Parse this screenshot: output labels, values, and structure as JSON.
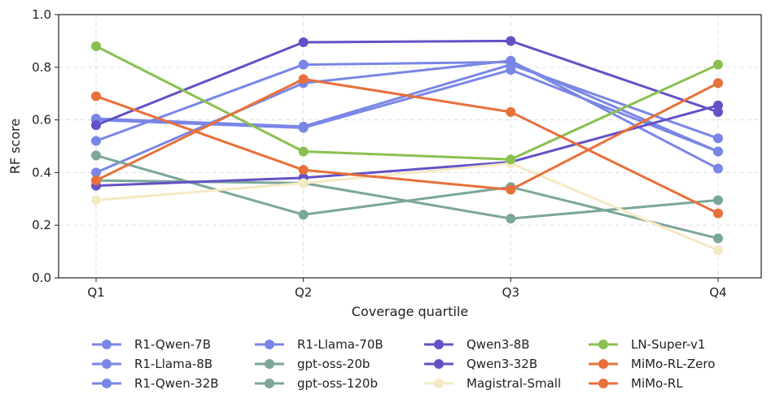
{
  "chart_data": {
    "type": "line",
    "title": "",
    "xlabel": "Coverage quartile",
    "ylabel": "RF score",
    "categories": [
      "Q1",
      "Q2",
      "Q3",
      "Q4"
    ],
    "ylim": [
      0.0,
      1.0
    ],
    "yticks": [
      "0.0",
      "0.2",
      "0.4",
      "0.6",
      "0.8",
      "1.0"
    ],
    "grid": true,
    "legend_position": "bottom",
    "series": [
      {
        "name": "R1-Qwen-7B",
        "color": "#7a86e6",
        "values": [
          0.6,
          0.57,
          0.79,
          0.48
        ]
      },
      {
        "name": "R1-Llama-8B",
        "color": "#7a86e6",
        "values": [
          0.52,
          0.81,
          0.82,
          0.48
        ]
      },
      {
        "name": "R1-Qwen-32B",
        "color": "#7a86e6",
        "values": [
          0.4,
          0.74,
          0.825,
          0.415
        ]
      },
      {
        "name": "R1-Llama-70B",
        "color": "#7a86e6",
        "values": [
          0.605,
          0.575,
          0.81,
          0.53
        ]
      },
      {
        "name": "gpt-oss-20b",
        "color": "#7ba69a",
        "values": [
          0.465,
          0.24,
          0.345,
          0.15
        ]
      },
      {
        "name": "gpt-oss-120b",
        "color": "#7ba69a",
        "values": [
          0.37,
          0.36,
          0.225,
          0.295
        ]
      },
      {
        "name": "Qwen3-8B",
        "color": "#6352c6",
        "values": [
          0.35,
          0.38,
          0.44,
          0.655
        ]
      },
      {
        "name": "Qwen3-32B",
        "color": "#6352c6",
        "values": [
          0.58,
          0.895,
          0.9,
          0.63
        ]
      },
      {
        "name": "Magistral-Small",
        "color": "#f5e9c4",
        "values": [
          0.295,
          0.36,
          0.435,
          0.105
        ]
      },
      {
        "name": "LN-Super-v1",
        "color": "#8ac050",
        "values": [
          0.88,
          0.48,
          0.45,
          0.81
        ]
      },
      {
        "name": "MiMo-RL-Zero",
        "color": "#e8703a",
        "values": [
          0.37,
          0.755,
          0.63,
          0.245
        ]
      },
      {
        "name": "MiMo-RL",
        "color": "#e8703a",
        "values": [
          0.69,
          0.41,
          0.335,
          0.74
        ]
      }
    ]
  }
}
